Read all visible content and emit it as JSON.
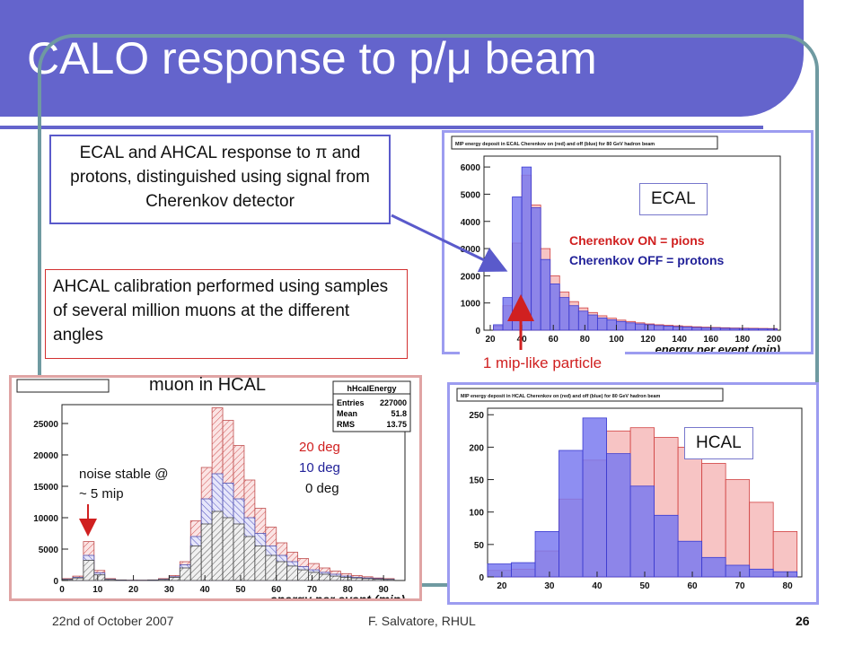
{
  "slide": {
    "title": "CALO response to p/μ beam",
    "footer": {
      "date": "22nd of October 2007",
      "author": "F. Salvatore, RHUL",
      "page": "26"
    }
  },
  "callouts": {
    "ecal_text": "ECAL and AHCAL response to π and protons, distinguished using signal from Cherenkov detector",
    "muon_text": "AHCAL calibration performed using samples of several million muons at the different angles"
  },
  "labels": {
    "ecal_tag": "ECAL",
    "hcal_tag": "HCAL",
    "cherenkov_on": "Cherenkov ON = pions",
    "cherenkov_off": "Cherenkov OFF = protons",
    "mip_like": "1 mip-like particle",
    "muon_title": "muon in HCAL",
    "noise_line1": "noise stable @",
    "noise_line2": "~ 5 mip",
    "deg20": "20 deg",
    "deg10": "10 deg",
    "deg0": "0 deg"
  },
  "colors": {
    "title_bar": "#6464cc",
    "frame": "#6f9aa1",
    "pion_fill": "#f4b0b0",
    "pion_line": "#d04040",
    "proton_fill": "#7a7af0",
    "proton_line": "#3a3ad0",
    "red_text": "#d02020",
    "blue_text": "#222299"
  },
  "chart_data": [
    {
      "type": "bar",
      "title": "MIP energy deposit in ECAL Cherenkov on (red) and off (blue) for 80 GeV hadron beam",
      "xlabel": "energy per event (mip)",
      "ylabel": "",
      "xlim": [
        16,
        204
      ],
      "ylim": [
        0,
        6400
      ],
      "x_ticks": [
        20,
        40,
        60,
        80,
        100,
        120,
        140,
        160,
        180,
        200
      ],
      "y_ticks": [
        0,
        1000,
        2000,
        3000,
        4000,
        5000,
        6000
      ],
      "bin_edges": [
        16,
        22,
        28,
        34,
        40,
        46,
        52,
        58,
        64,
        70,
        76,
        82,
        88,
        94,
        100,
        106,
        112,
        118,
        124,
        130,
        136,
        142,
        148,
        154,
        160,
        166,
        172,
        178,
        184,
        190,
        196,
        202
      ],
      "series": [
        {
          "name": "Cherenkov ON = pions",
          "values": [
            0,
            150,
            900,
            3200,
            5700,
            4600,
            3000,
            2000,
            1400,
            1050,
            820,
            650,
            530,
            440,
            370,
            320,
            270,
            230,
            200,
            180,
            160,
            140,
            125,
            110,
            100,
            90,
            80,
            75,
            70,
            65,
            60
          ]
        },
        {
          "name": "Cherenkov OFF = protons",
          "values": [
            0,
            200,
            1200,
            4900,
            6000,
            4500,
            2600,
            1700,
            1200,
            900,
            700,
            560,
            450,
            380,
            320,
            270,
            230,
            200,
            170,
            150,
            130,
            115,
            100,
            90,
            80,
            72,
            65,
            60,
            55,
            50,
            45
          ]
        }
      ]
    },
    {
      "type": "bar",
      "title": "MIP energy deposit in HCAL Cherenkov on (red) and off (blue) for 80 GeV hadron beam",
      "xlabel": "",
      "ylabel": "",
      "xlim": [
        17,
        83
      ],
      "ylim": [
        0,
        260
      ],
      "x_ticks": [
        20,
        30,
        40,
        50,
        60,
        70,
        80
      ],
      "y_ticks": [
        0,
        50,
        100,
        150,
        200,
        250
      ],
      "bin_edges": [
        17,
        22,
        27,
        32,
        37,
        42,
        47,
        52,
        57,
        62,
        67,
        72,
        77,
        82
      ],
      "series": [
        {
          "name": "Cherenkov ON = pions",
          "values": [
            10,
            12,
            40,
            120,
            180,
            225,
            230,
            215,
            200,
            175,
            150,
            115,
            70
          ]
        },
        {
          "name": "Cherenkov OFF = protons",
          "values": [
            20,
            22,
            70,
            195,
            245,
            190,
            140,
            95,
            55,
            30,
            18,
            12,
            8
          ]
        }
      ]
    },
    {
      "type": "bar",
      "title": "hHcalEnergy",
      "xlabel": "energy per event (mip)",
      "ylabel": "",
      "xlim": [
        0,
        96
      ],
      "ylim": [
        0,
        28000
      ],
      "x_ticks": [
        0,
        10,
        20,
        30,
        40,
        50,
        60,
        70,
        80,
        90
      ],
      "y_ticks": [
        0,
        5000,
        10000,
        15000,
        20000,
        25000
      ],
      "stats": {
        "title": "hHcalEnergy",
        "Entries": "227000",
        "Mean": "51.8",
        "RMS": "13.75"
      },
      "stats2_title": "hHcalEnergy",
      "bin_edges": [
        0,
        3,
        6,
        9,
        12,
        15,
        18,
        21,
        24,
        27,
        30,
        33,
        36,
        39,
        42,
        45,
        48,
        51,
        54,
        57,
        60,
        63,
        66,
        69,
        72,
        75,
        78,
        81,
        84,
        87,
        90,
        93
      ],
      "series": [
        {
          "name": "20 deg",
          "values": [
            300,
            700,
            6200,
            1600,
            300,
            100,
            50,
            50,
            100,
            300,
            800,
            3000,
            9500,
            18000,
            27500,
            25500,
            21500,
            16000,
            11500,
            8500,
            6000,
            4500,
            3500,
            2700,
            2000,
            1500,
            1100,
            800,
            600,
            400,
            300
          ]
        },
        {
          "name": "10 deg",
          "values": [
            200,
            500,
            4000,
            1200,
            200,
            80,
            40,
            40,
            80,
            200,
            600,
            2500,
            7000,
            13000,
            17000,
            15500,
            13000,
            10000,
            7500,
            5500,
            4000,
            3000,
            2200,
            1700,
            1300,
            1000,
            700,
            500,
            400,
            300,
            200
          ]
        },
        {
          "name": "0 deg",
          "values": [
            150,
            400,
            3200,
            900,
            150,
            60,
            30,
            30,
            60,
            150,
            500,
            2000,
            5500,
            9000,
            11000,
            10000,
            9000,
            7000,
            5500,
            4000,
            3000,
            2300,
            1700,
            1300,
            1000,
            700,
            500,
            400,
            300,
            200,
            150
          ]
        }
      ]
    }
  ]
}
